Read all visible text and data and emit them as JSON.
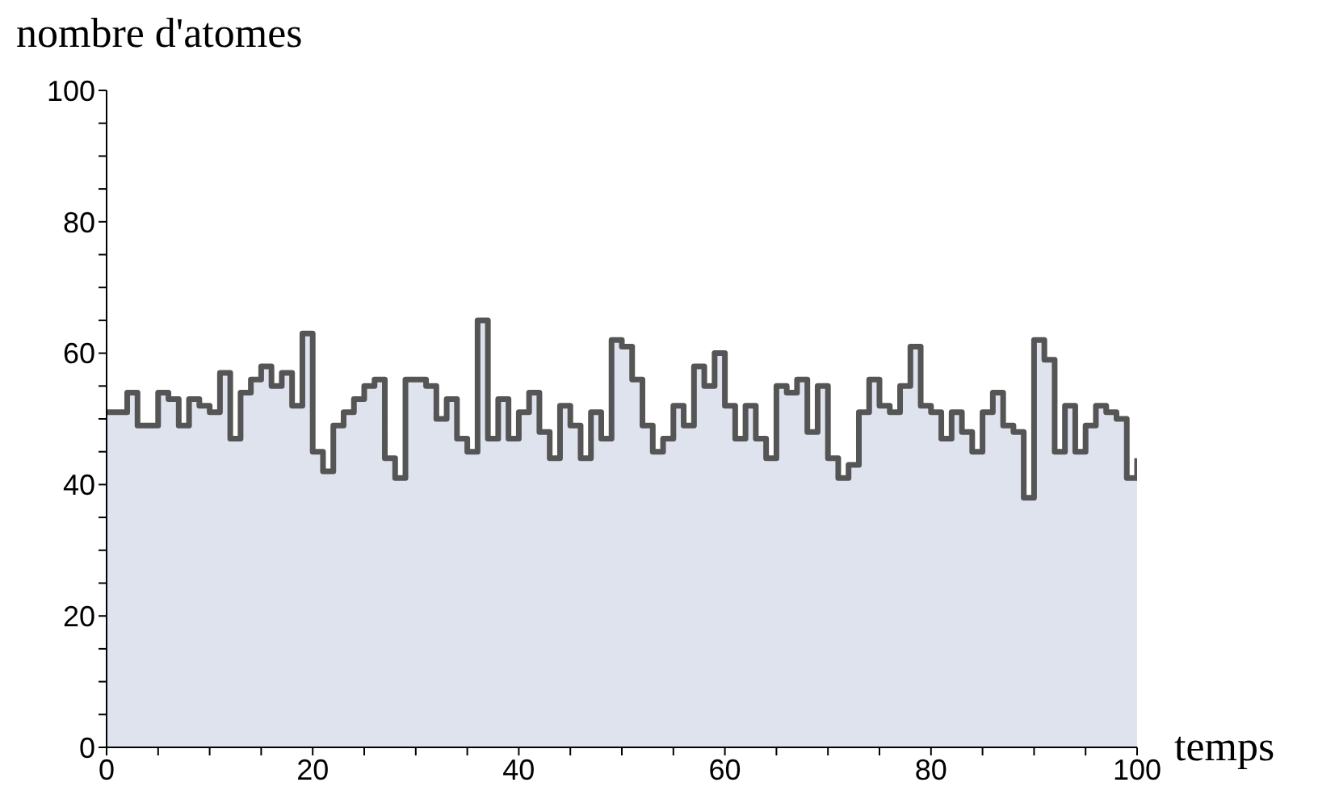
{
  "chart_data": {
    "type": "step",
    "xlabel": "temps",
    "ylabel": "nombre d'atomes",
    "x": [
      0,
      1,
      2,
      3,
      4,
      5,
      6,
      7,
      8,
      9,
      10,
      11,
      12,
      13,
      14,
      15,
      16,
      17,
      18,
      19,
      20,
      21,
      22,
      23,
      24,
      25,
      26,
      27,
      28,
      29,
      30,
      31,
      32,
      33,
      34,
      35,
      36,
      37,
      38,
      39,
      40,
      41,
      42,
      43,
      44,
      45,
      46,
      47,
      48,
      49,
      50,
      51,
      52,
      53,
      54,
      55,
      56,
      57,
      58,
      59,
      60,
      61,
      62,
      63,
      64,
      65,
      66,
      67,
      68,
      69,
      70,
      71,
      72,
      73,
      74,
      75,
      76,
      77,
      78,
      79,
      80,
      81,
      82,
      83,
      84,
      85,
      86,
      87,
      88,
      89,
      90,
      91,
      92,
      93,
      94,
      95,
      96,
      97,
      98,
      99,
      100
    ],
    "series": [
      {
        "type": "area",
        "color": "#dfe3ee",
        "values": [
          51,
          51,
          54,
          49,
          49,
          54,
          53,
          49,
          53,
          52,
          51,
          57,
          47,
          54,
          56,
          58,
          55,
          57,
          52,
          63,
          45,
          42,
          49,
          51,
          53,
          55,
          56,
          44,
          41,
          56,
          56,
          55,
          50,
          53,
          47,
          45,
          65,
          47,
          53,
          47,
          51,
          54,
          48,
          44,
          52,
          49,
          44,
          51,
          47,
          62,
          61,
          56,
          49,
          45,
          47,
          52,
          49,
          58,
          55,
          60,
          52,
          47,
          52,
          47,
          44,
          55,
          54,
          56,
          48,
          55,
          44,
          41,
          43,
          51,
          56,
          52,
          51,
          55,
          61,
          52,
          51,
          47,
          51,
          48,
          45,
          51,
          54,
          49,
          48,
          38,
          62,
          59,
          45,
          52,
          45,
          49,
          52,
          51,
          50,
          41,
          44
        ]
      },
      {
        "color": "#555555",
        "values": [
          51,
          51,
          54,
          49,
          49,
          54,
          53,
          49,
          53,
          52,
          51,
          57,
          47,
          54,
          56,
          58,
          55,
          57,
          52,
          63,
          45,
          42,
          49,
          51,
          53,
          55,
          56,
          44,
          41,
          56,
          56,
          55,
          50,
          53,
          47,
          45,
          65,
          47,
          53,
          47,
          51,
          54,
          48,
          44,
          52,
          49,
          44,
          51,
          47,
          62,
          61,
          56,
          49,
          45,
          47,
          52,
          49,
          58,
          55,
          60,
          52,
          47,
          52,
          47,
          44,
          55,
          54,
          56,
          48,
          55,
          44,
          41,
          43,
          51,
          56,
          52,
          51,
          55,
          61,
          52,
          51,
          47,
          51,
          48,
          45,
          51,
          54,
          49,
          48,
          38,
          62,
          59,
          45,
          52,
          45,
          49,
          52,
          51,
          50,
          41,
          44
        ]
      }
    ],
    "xlim": [
      0,
      100
    ],
    "ylim": [
      0,
      100
    ],
    "xticks": [
      0,
      {
        "value": 5,
        "label": null
      },
      {
        "value": 10,
        "label": null
      },
      {
        "value": 15,
        "label": null
      },
      20,
      {
        "value": 25,
        "label": null
      },
      {
        "value": 30,
        "label": null
      },
      {
        "value": 35,
        "label": null
      },
      40,
      {
        "value": 45,
        "label": null
      },
      {
        "value": 50,
        "label": null
      },
      {
        "value": 55,
        "label": null
      },
      60,
      {
        "value": 65,
        "label": null
      },
      {
        "value": 70,
        "label": null
      },
      {
        "value": 75,
        "label": null
      },
      80,
      {
        "value": 85,
        "label": null
      },
      {
        "value": 90,
        "label": null
      },
      {
        "value": 95,
        "label": null
      },
      100
    ],
    "yticks": [
      0,
      {
        "value": 5,
        "label": null
      },
      {
        "value": 10,
        "label": null
      },
      {
        "value": 15,
        "label": null
      },
      20,
      {
        "value": 25,
        "label": null
      },
      {
        "value": 30,
        "label": null
      },
      {
        "value": 35,
        "label": null
      },
      40,
      {
        "value": 45,
        "label": null
      },
      {
        "value": 50,
        "label": null
      },
      {
        "value": 55,
        "label": null
      },
      60,
      {
        "value": 65,
        "label": null
      },
      {
        "value": 70,
        "label": null
      },
      {
        "value": 75,
        "label": null
      },
      80,
      {
        "value": 85,
        "label": null
      },
      {
        "value": 90,
        "label": null
      },
      {
        "value": 95,
        "label": null
      },
      100
    ],
    "grid": false,
    "legend": false
  }
}
